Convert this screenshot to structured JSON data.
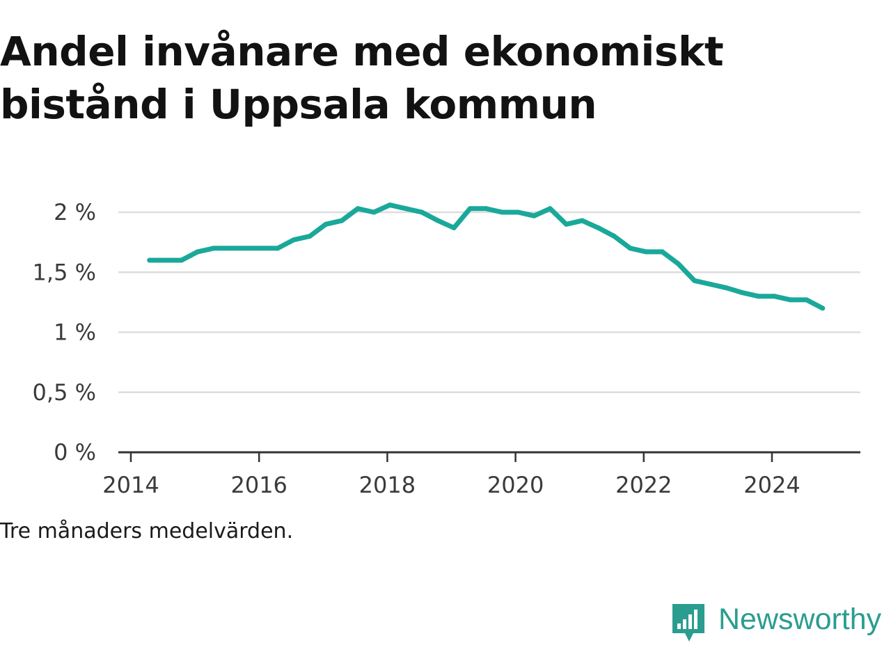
{
  "title": "Andel invånare med ekonomiskt bistånd i Uppsala kommun",
  "note": "Tre månaders medelvärden.",
  "brand": {
    "name": "Newsworthy",
    "icon": "newsworthy-logo-icon",
    "color": "#2a9d8f"
  },
  "colors": {
    "line": "#1aa89a",
    "grid": "#dddddd",
    "axis": "#333333",
    "text": "#3a3a3a"
  },
  "chart_data": {
    "type": "line",
    "title": "Andel invånare med ekonomiskt bistånd i Uppsala kommun",
    "xlabel": "",
    "ylabel": "",
    "xlim": [
      2014,
      2025.35
    ],
    "ylim": [
      0,
      2
    ],
    "grid": true,
    "x_ticks": [
      2014,
      2016,
      2018,
      2020,
      2022,
      2024
    ],
    "x_tick_labels": [
      "2014",
      "2016",
      "2018",
      "2020",
      "2022",
      "2024"
    ],
    "y_ticks": [
      0,
      0.5,
      1,
      1.5,
      2
    ],
    "y_tick_labels": [
      "0 %",
      "0,5 %",
      "1 %",
      "1,5 %",
      "2 %"
    ],
    "series": [
      {
        "name": "Andel invånare med ekonomiskt bistånd",
        "x": [
          2014.29,
          2014.54,
          2014.79,
          2015.04,
          2015.29,
          2015.54,
          2015.79,
          2016.04,
          2016.29,
          2016.54,
          2016.79,
          2017.04,
          2017.29,
          2017.54,
          2017.79,
          2018.04,
          2018.29,
          2018.54,
          2018.79,
          2019.04,
          2019.29,
          2019.54,
          2019.79,
          2020.04,
          2020.29,
          2020.54,
          2020.79,
          2021.04,
          2021.29,
          2021.54,
          2021.79,
          2022.04,
          2022.29,
          2022.54,
          2022.79,
          2023.04,
          2023.29,
          2023.54,
          2023.79,
          2024.04,
          2024.29,
          2024.54,
          2024.79
        ],
        "values": [
          1.6,
          1.6,
          1.6,
          1.67,
          1.7,
          1.7,
          1.7,
          1.7,
          1.7,
          1.77,
          1.8,
          1.9,
          1.93,
          2.03,
          2.0,
          2.06,
          2.03,
          2.0,
          1.93,
          1.87,
          2.03,
          2.03,
          2.0,
          2.0,
          1.97,
          2.03,
          1.9,
          1.93,
          1.87,
          1.8,
          1.7,
          1.67,
          1.67,
          1.57,
          1.43,
          1.4,
          1.37,
          1.33,
          1.3,
          1.3,
          1.27,
          1.27,
          1.2
        ]
      }
    ]
  }
}
